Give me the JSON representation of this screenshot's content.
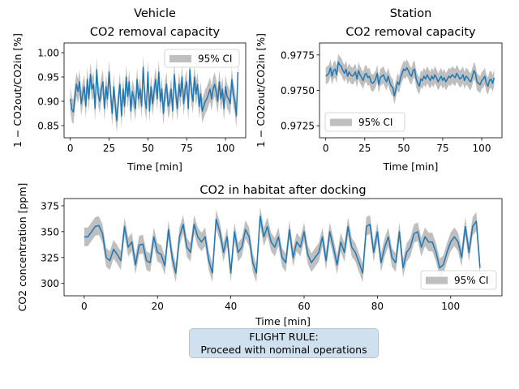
{
  "chart_data": [
    {
      "type": "line",
      "title": "Vehicle\nCO2 removal capacity",
      "xlabel": "Time [min]",
      "ylabel": "1 − CO2out/CO2in [%]",
      "xlim": [
        -4,
        113
      ],
      "ylim": [
        0.825,
        1.02
      ],
      "xticks": [
        0,
        25,
        50,
        75,
        100
      ],
      "yticks": [
        0.85,
        0.9,
        0.95,
        1.0
      ],
      "ytick_labels": [
        "0.85",
        "0.90",
        "0.95",
        "1.00"
      ],
      "legend": {
        "position": "top-right",
        "label": "95% CI"
      },
      "ci_halfwidth": 0.025,
      "series": [
        {
          "color": "#1f77b4",
          "x_start": 0,
          "x_step": 1,
          "values": [
            0.905,
            0.883,
            0.878,
            0.91,
            0.935,
            0.92,
            0.94,
            0.895,
            0.915,
            0.93,
            0.89,
            0.945,
            0.905,
            0.955,
            0.925,
            0.935,
            0.885,
            0.965,
            0.915,
            0.9,
            0.925,
            0.94,
            0.885,
            0.93,
            0.905,
            0.96,
            0.915,
            0.875,
            0.93,
            0.89,
            0.86,
            0.905,
            0.935,
            0.87,
            0.925,
            0.89,
            0.95,
            0.91,
            0.94,
            0.88,
            0.92,
            0.905,
            0.885,
            0.945,
            0.905,
            0.925,
            0.89,
            0.97,
            0.905,
            0.885,
            0.96,
            0.88,
            0.93,
            0.895,
            0.92,
            0.945,
            0.905,
            0.96,
            0.9,
            0.925,
            0.875,
            0.915,
            0.935,
            0.89,
            0.9,
            0.925,
            0.88,
            0.955,
            0.915,
            0.885,
            0.935,
            0.91,
            0.95,
            0.895,
            0.925,
            0.94,
            0.885,
            0.965,
            0.92,
            0.9,
            0.95,
            0.915,
            0.935,
            0.89,
            0.915,
            0.88,
            0.89,
            0.9,
            0.905,
            0.915,
            0.925,
            0.905,
            0.925,
            0.935,
            0.92,
            0.9,
            0.94,
            0.905,
            0.925,
            0.885,
            0.93,
            0.91,
            0.905,
            0.895,
            0.945,
            0.915,
            0.9,
            0.87,
            0.96
          ]
        }
      ]
    },
    {
      "type": "line",
      "title": "Station\nCO2 removal capacity",
      "xlabel": "Time [min]",
      "ylabel": "1 − CO2out/CO2in [%]",
      "xlim": [
        -4,
        113
      ],
      "ylim": [
        0.97165,
        0.97835
      ],
      "xticks": [
        0,
        25,
        50,
        75,
        100
      ],
      "yticks": [
        0.9725,
        0.975,
        0.9775
      ],
      "ytick_labels": [
        "0.9725",
        "0.9750",
        "0.9775"
      ],
      "legend": {
        "position": "bottom-left",
        "label": "95% CI"
      },
      "ci_halfwidth": 0.0006,
      "series": [
        {
          "color": "#1f77b4",
          "x_start": 0,
          "x_step": 1,
          "values": [
            0.976,
            0.9761,
            0.9762,
            0.9766,
            0.976,
            0.9764,
            0.9765,
            0.9761,
            0.977,
            0.9768,
            0.9767,
            0.9764,
            0.9762,
            0.9765,
            0.976,
            0.9763,
            0.9761,
            0.976,
            0.9761,
            0.9763,
            0.9758,
            0.9764,
            0.9761,
            0.9759,
            0.9757,
            0.9761,
            0.9762,
            0.9759,
            0.976,
            0.9756,
            0.9755,
            0.9756,
            0.9758,
            0.9762,
            0.9754,
            0.9759,
            0.976,
            0.9761,
            0.9758,
            0.9756,
            0.976,
            0.9756,
            0.9753,
            0.9752,
            0.9746,
            0.9751,
            0.9756,
            0.9754,
            0.9759,
            0.9762,
            0.9765,
            0.9764,
            0.9766,
            0.9764,
            0.9761,
            0.976,
            0.9764,
            0.9765,
            0.9758,
            0.9755,
            0.9753,
            0.9758,
            0.9757,
            0.976,
            0.9758,
            0.9761,
            0.9759,
            0.9757,
            0.976,
            0.9758,
            0.9761,
            0.9759,
            0.9756,
            0.9758,
            0.976,
            0.9757,
            0.9759,
            0.9756,
            0.9758,
            0.976,
            0.9759,
            0.9761,
            0.976,
            0.9759,
            0.9762,
            0.976,
            0.9758,
            0.9759,
            0.9761,
            0.9757,
            0.976,
            0.9759,
            0.9757,
            0.9756,
            0.976,
            0.9764,
            0.9762,
            0.9756,
            0.9755,
            0.9754,
            0.9757,
            0.9758,
            0.976,
            0.9755,
            0.9753,
            0.9757,
            0.9758,
            0.9755,
            0.9759
          ]
        }
      ]
    },
    {
      "type": "line",
      "title": "CO2 in habitat after docking",
      "xlabel": "Time [min]",
      "ylabel": "CO2 concentration [ppm]",
      "xlim": [
        -5.5,
        114
      ],
      "ylim": [
        288,
        382
      ],
      "xticks": [
        0,
        20,
        40,
        60,
        80,
        100
      ],
      "yticks": [
        300,
        325,
        350,
        375
      ],
      "ytick_labels": [
        "300",
        "325",
        "350",
        "375"
      ],
      "legend": {
        "position": "bottom-right",
        "label": "95% CI"
      },
      "ci_halfwidth": 9,
      "series": [
        {
          "color": "#1f77b4",
          "x_start": 0,
          "x_step": 1,
          "values": [
            345,
            345,
            350,
            355,
            356,
            348,
            325,
            322,
            333,
            328,
            322,
            355,
            335,
            340,
            318,
            337,
            338,
            322,
            320,
            345,
            330,
            328,
            317,
            352,
            325,
            310,
            345,
            357,
            335,
            330,
            357,
            345,
            340,
            345,
            322,
            310,
            362,
            350,
            330,
            345,
            310,
            350,
            330,
            335,
            352,
            345,
            320,
            310,
            365,
            345,
            355,
            340,
            335,
            345,
            325,
            320,
            352,
            325,
            340,
            335,
            350,
            328,
            320,
            325,
            330,
            345,
            322,
            350,
            335,
            318,
            340,
            330,
            355,
            335,
            330,
            320,
            310,
            355,
            357,
            330,
            350,
            320,
            335,
            345,
            325,
            320,
            350,
            315,
            330,
            335,
            348,
            350,
            335,
            345,
            340,
            340,
            330,
            315,
            318,
            330,
            340,
            345,
            340,
            325,
            355,
            330,
            355,
            360,
            315
          ]
        }
      ]
    }
  ],
  "flight_rule": {
    "line1": "FLIGHT RULE:",
    "line2": "Proceed with nominal operations"
  }
}
